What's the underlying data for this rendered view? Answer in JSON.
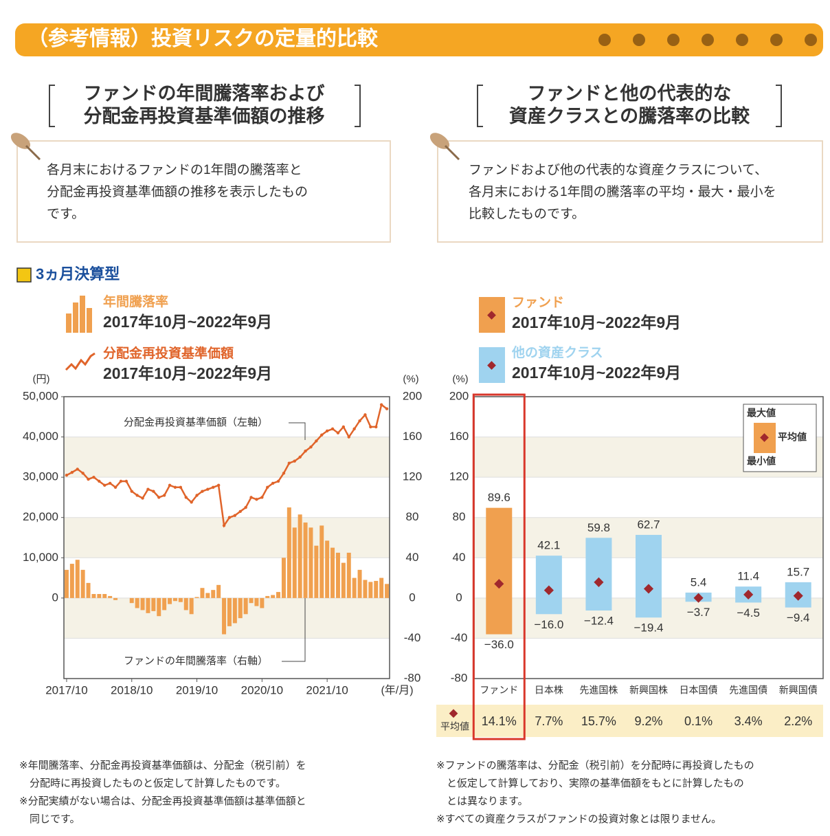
{
  "header": {
    "title": "（参考情報）投資リスクの定量的比較"
  },
  "left": {
    "heading": [
      "ファンドの年間騰落率および",
      "分配金再投資基準価額の推移"
    ],
    "note": [
      "各月末におけるファンドの1年間の騰落率と",
      "分配金再投資基準価額の推移を表示したもの",
      "です。"
    ],
    "footnotes": [
      "※年間騰落率、分配金再投資基準価額は、分配金（税引前）を",
      "　分配時に再投資したものと仮定して計算したものです。",
      "※分配実績がない場合は、分配金再投資基準価額は基準価額と",
      "　同じです。"
    ]
  },
  "right": {
    "heading": [
      "ファンドと他の代表的な",
      "資産クラスとの騰落率の比較"
    ],
    "note": [
      "ファンドおよび他の代表的な資産クラスについて、",
      "各月末における1年間の騰落率の平均・最大・最小を",
      "比較したものです。"
    ],
    "footnotes": [
      "※ファンドの騰落率は、分配金（税引前）を分配時に再投資したもの",
      "　と仮定して計算しており、実際の基準価額をもとに計算したもの",
      "　とは異なります。",
      "※すべての資産クラスがファンドの投資対象とは限りません。"
    ]
  },
  "chart_data": [
    {
      "type": "combo",
      "subtitle": "3ヵ月決算型",
      "categories": [
        "2017/10",
        null,
        null,
        null,
        null,
        null,
        null,
        null,
        null,
        null,
        null,
        null,
        "2018/10",
        null,
        null,
        null,
        null,
        null,
        null,
        null,
        null,
        null,
        null,
        null,
        "2019/10",
        null,
        null,
        null,
        null,
        null,
        null,
        null,
        null,
        null,
        null,
        null,
        "2020/10",
        null,
        null,
        null,
        null,
        null,
        null,
        null,
        null,
        null,
        null,
        null,
        "2021/10",
        null,
        null,
        null,
        null,
        null,
        null,
        null,
        null,
        null,
        null,
        null
      ],
      "series": [
        {
          "name": "年間騰落率",
          "period": "2017年10月~2022年9月",
          "kind": "bar",
          "axis": "y2",
          "color": "#f0a04f",
          "values": [
            28,
            34,
            38,
            28,
            15,
            4,
            4,
            4,
            2,
            -2,
            0,
            0,
            -5,
            -10,
            -12,
            -15,
            -13,
            -18,
            -12,
            -6,
            -3,
            -4,
            -12,
            -16,
            1,
            10,
            5,
            8,
            13,
            -36,
            -28,
            -25,
            -20,
            -16,
            -5,
            -8,
            -10,
            2,
            3,
            6,
            40,
            90,
            70,
            83,
            75,
            70,
            52,
            72,
            57,
            50,
            45,
            35,
            45,
            20,
            28,
            18,
            16,
            17,
            20,
            14
          ]
        },
        {
          "name": "分配金再投資基準価額",
          "period": "2017年10月~2022年9月",
          "kind": "line",
          "color": "#e0642a",
          "values": [
            30500,
            31200,
            32000,
            31000,
            29500,
            30000,
            29000,
            28000,
            28500,
            27500,
            29000,
            29000,
            26500,
            25500,
            24800,
            27000,
            26500,
            25000,
            25500,
            28000,
            27500,
            27500,
            25000,
            23800,
            25500,
            26500,
            27000,
            27500,
            28000,
            18000,
            20000,
            20500,
            21500,
            22500,
            25000,
            24500,
            25000,
            27500,
            28500,
            29000,
            31000,
            33500,
            34000,
            35000,
            36500,
            37500,
            39000,
            40500,
            41500,
            42000,
            41000,
            42500,
            40000,
            42000,
            44000,
            45500,
            42500,
            42500,
            48000,
            47000
          ]
        }
      ],
      "ylabel": "(円)",
      "y2label": "(%)",
      "xlabel": "(年/月)",
      "ylim": [
        -20000,
        50000
      ],
      "yticks": [
        0,
        {
          "value": 10000,
          "label": "10,000"
        },
        {
          "value": 20000,
          "label": "20,000"
        },
        {
          "value": 30000,
          "label": "30,000"
        },
        {
          "value": 40000,
          "label": "40,000"
        },
        {
          "value": 50000,
          "label": "50,000"
        }
      ],
      "y2lim": [
        -80,
        200
      ],
      "y2ticks": [
        -80,
        -40,
        0,
        40,
        80,
        120,
        160,
        200
      ],
      "annotations": [
        "分配金再投資基準価額（左軸）",
        "ファンドの年間騰落率（右軸）"
      ]
    },
    {
      "type": "range",
      "groups": [
        {
          "name": "ファンド",
          "period": "2017年10月~2022年9月",
          "color": "#f0a04f"
        },
        {
          "name": "他の資産クラス",
          "period": "2017年10月~2022年9月",
          "color": "#9fd3ef"
        }
      ],
      "categories": [
        "ファンド",
        "日本株",
        "先進国株",
        "新興国株",
        "日本国債",
        "先進国債",
        "新興国債"
      ],
      "series": [
        {
          "name": "最大値",
          "values": [
            89.6,
            42.1,
            59.8,
            62.7,
            5.4,
            11.4,
            15.7
          ]
        },
        {
          "name": "最小値",
          "values": [
            -36.0,
            -16.0,
            -12.4,
            -19.4,
            -3.7,
            -4.5,
            -9.4
          ],
          "value_labels": [
            "−36.0",
            "−16.0",
            "−12.4",
            "−19.4",
            "−3.7",
            "−4.5",
            "−9.4"
          ]
        },
        {
          "name": "平均値",
          "color": "#a0282d",
          "values": [
            14.1,
            7.7,
            15.7,
            9.2,
            0.1,
            3.4,
            2.2
          ],
          "value_labels": [
            "14.1%",
            "7.7%",
            "15.7%",
            "9.2%",
            "0.1%",
            "3.4%",
            "2.2%"
          ]
        }
      ],
      "ylabel": "(%)",
      "ylim": [
        -80,
        200
      ],
      "yticks": [
        -80,
        -40,
        0,
        40,
        80,
        120,
        160,
        200
      ],
      "grid": true
    }
  ]
}
